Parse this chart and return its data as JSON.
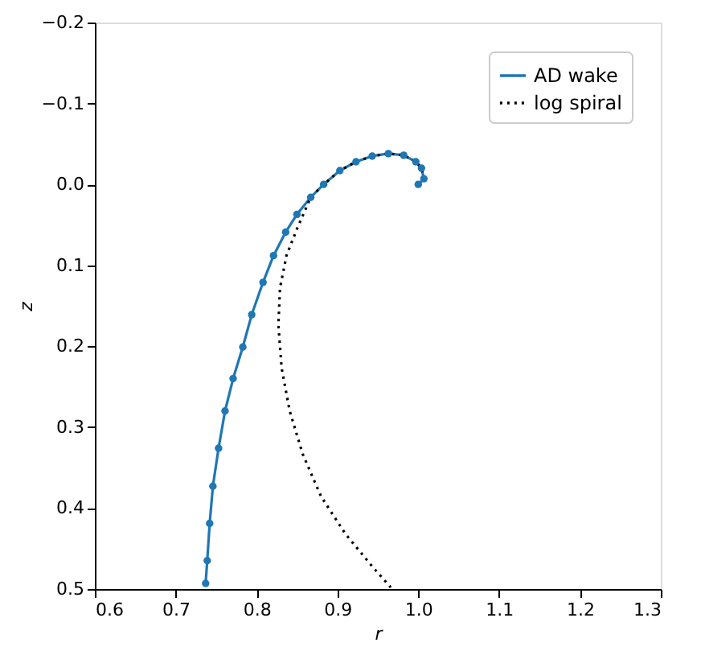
{
  "chart_data": {
    "type": "line",
    "xlabel": "r",
    "ylabel": "z",
    "xlim": [
      0.6,
      1.3
    ],
    "xticks": [
      0.6,
      0.7,
      0.8,
      0.9,
      {
        "value": 1,
        "label": "1.0"
      },
      1.1,
      1.2,
      1.3
    ],
    "ylim": [
      0.5,
      -0.2
    ],
    "yticks": [
      -0.2,
      -0.1,
      {
        "value": 0,
        "label": "0.0"
      },
      0.1,
      0.2,
      0.3,
      0.4,
      0.5
    ],
    "grid": false,
    "legend": "top right",
    "series": [
      {
        "name": "AD wake",
        "color": "#1f77b4",
        "marker": "circle",
        "line_style": "solid",
        "x": [
          1.0,
          1.007,
          1.004,
          0.997,
          0.982,
          0.963,
          0.943,
          0.923,
          0.903,
          0.883,
          0.867,
          0.85,
          0.836,
          0.821,
          0.808,
          0.794,
          0.783,
          0.771,
          0.761,
          0.753,
          0.746,
          0.742,
          0.739,
          0.737
        ],
        "values": [
          0.0,
          -0.007,
          -0.02,
          -0.028,
          -0.036,
          -0.038,
          -0.035,
          -0.028,
          -0.017,
          0.0,
          0.016,
          0.037,
          0.059,
          0.088,
          0.121,
          0.161,
          0.201,
          0.24,
          0.28,
          0.326,
          0.373,
          0.419,
          0.465,
          0.493
        ]
      },
      {
        "name": "log spiral",
        "color": "#000000",
        "marker": "none",
        "line_style": "dotted",
        "x": [
          1.0,
          1.007,
          1.004,
          0.997,
          0.982,
          0.963,
          0.943,
          0.923,
          0.903,
          0.883,
          0.867,
          0.85,
          0.837,
          0.829,
          0.827,
          0.831,
          0.841,
          0.857,
          0.88,
          0.91,
          0.943,
          0.966
        ],
        "values": [
          0.0,
          -0.007,
          -0.02,
          -0.028,
          -0.036,
          -0.038,
          -0.035,
          -0.028,
          -0.017,
          0.0,
          0.016,
          0.055,
          0.088,
          0.128,
          0.174,
          0.227,
          0.28,
          0.333,
          0.386,
          0.432,
          0.472,
          0.498
        ]
      }
    ]
  }
}
